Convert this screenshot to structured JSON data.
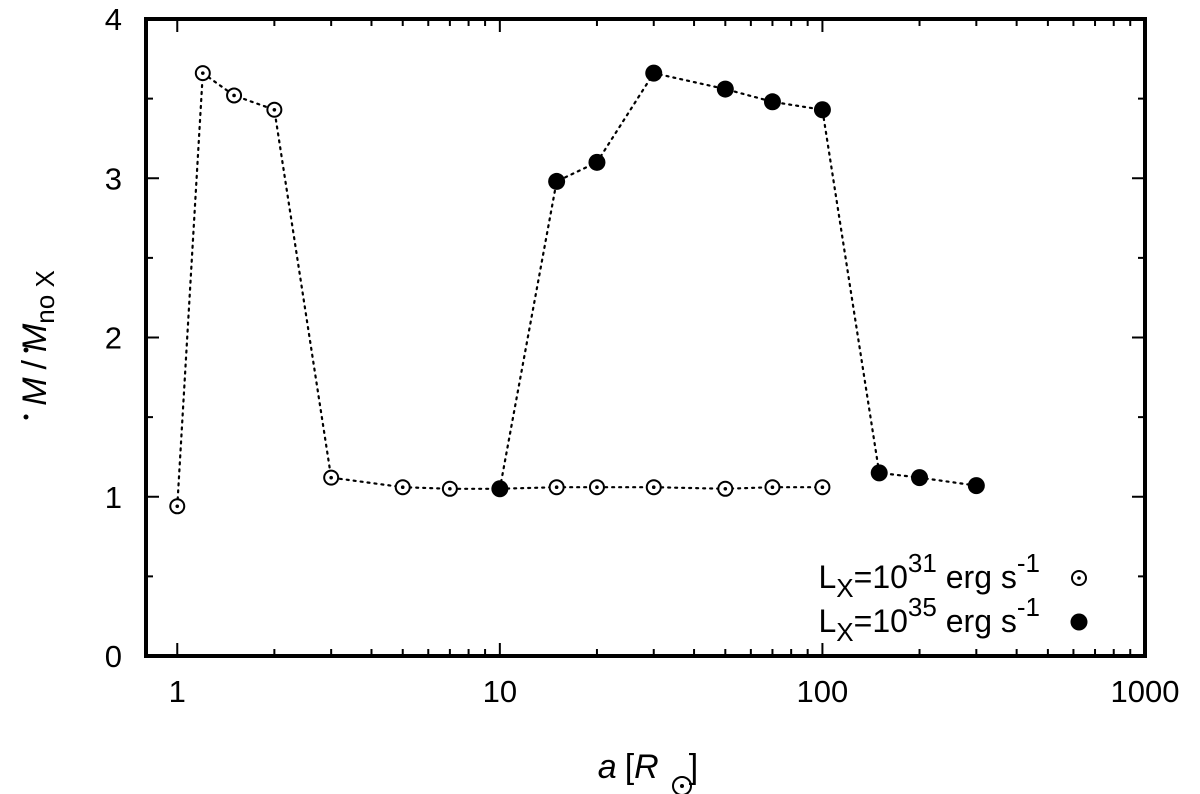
{
  "chart_data": {
    "type": "scatter",
    "x_scale": "log",
    "xlim": [
      0.8,
      1000
    ],
    "ylim": [
      0,
      4
    ],
    "x_ticks": [
      {
        "value": 1,
        "label": "1"
      },
      {
        "value": 10,
        "label": "10"
      },
      {
        "value": 100,
        "label": "100"
      },
      {
        "value": 1000,
        "label": "1000"
      }
    ],
    "y_ticks": [
      {
        "value": 0,
        "label": "0"
      },
      {
        "value": 1,
        "label": "1"
      },
      {
        "value": 2,
        "label": "2"
      },
      {
        "value": 3,
        "label": "3"
      },
      {
        "value": 4,
        "label": "4"
      }
    ],
    "xlabel": {
      "main": "a",
      "bracket_open": "[",
      "symbol": "R",
      "bracket_close": "]"
    },
    "ylabel": {
      "numerator": "M",
      "slash": "/",
      "denominator": "M",
      "subscript": "no X"
    },
    "legend_position": "bottom-right",
    "series": [
      {
        "legend": {
          "prefix": "L",
          "sub": "X",
          "mid": "=10",
          "exp": "31",
          "unit": " erg s",
          "unit_exp": "-1"
        },
        "marker": "open-circle-dot",
        "points": [
          [
            1.0,
            0.94
          ],
          [
            1.2,
            3.66
          ],
          [
            1.5,
            3.52
          ],
          [
            2.0,
            3.43
          ],
          [
            3.0,
            1.12
          ],
          [
            5.0,
            1.06
          ],
          [
            7.0,
            1.05
          ],
          [
            10.0,
            1.05
          ],
          [
            15.0,
            1.06
          ],
          [
            20.0,
            1.06
          ],
          [
            30.0,
            1.06
          ],
          [
            50.0,
            1.05
          ],
          [
            70.0,
            1.06
          ],
          [
            100.0,
            1.06
          ]
        ]
      },
      {
        "legend": {
          "prefix": "L",
          "sub": "X",
          "mid": "=10",
          "exp": "35",
          "unit": " erg s",
          "unit_exp": "-1"
        },
        "marker": "filled-circle",
        "points": [
          [
            10.0,
            1.05
          ],
          [
            15.0,
            2.98
          ],
          [
            20.0,
            3.1
          ],
          [
            30.0,
            3.66
          ],
          [
            50.0,
            3.56
          ],
          [
            70.0,
            3.48
          ],
          [
            100.0,
            3.43
          ],
          [
            150.0,
            1.15
          ],
          [
            200.0,
            1.12
          ],
          [
            300.0,
            1.07
          ]
        ]
      }
    ]
  }
}
